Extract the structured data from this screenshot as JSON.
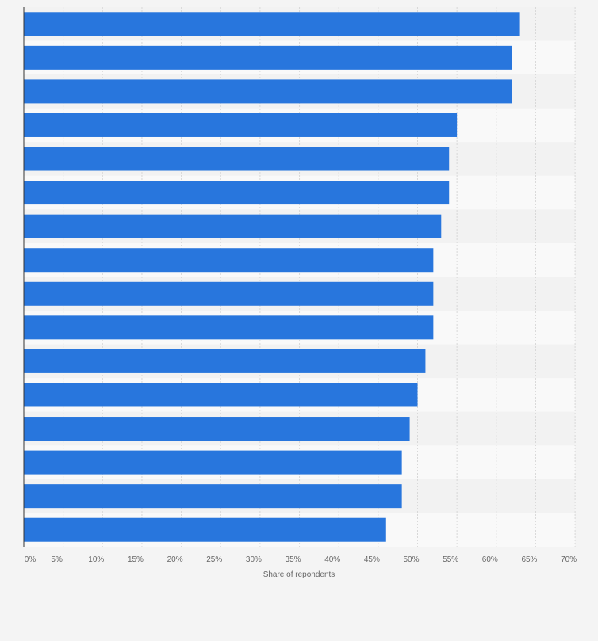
{
  "chart_data": {
    "type": "bar",
    "orientation": "horizontal",
    "xlabel": "Share of repondents",
    "xlim": [
      0,
      70
    ],
    "x_ticks": [
      "0%",
      "5%",
      "10%",
      "15%",
      "20%",
      "25%",
      "30%",
      "35%",
      "40%",
      "45%",
      "50%",
      "55%",
      "60%",
      "65%",
      "70%"
    ],
    "x_tick_values": [
      0,
      5,
      10,
      15,
      20,
      25,
      30,
      35,
      40,
      45,
      50,
      55,
      60,
      65,
      70
    ],
    "values": [
      63,
      62,
      62,
      55,
      54,
      54,
      53,
      52,
      52,
      52,
      51,
      50,
      49,
      48,
      48,
      46
    ],
    "grid": true,
    "colors": {
      "bar": "#2876dd",
      "band_light": "#f9f9f9",
      "band_dark": "#f2f2f2",
      "grid": "#d8d8d8",
      "axis": "#333333",
      "text": "#666666"
    }
  }
}
